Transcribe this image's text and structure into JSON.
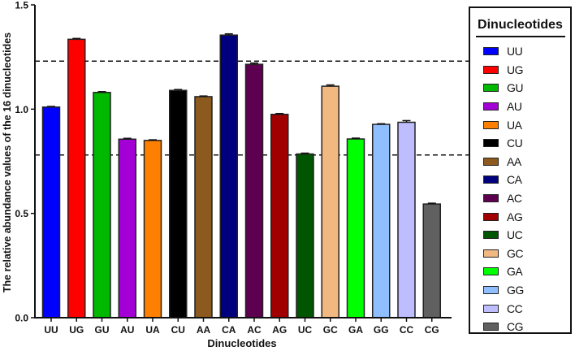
{
  "chart_data": {
    "type": "bar",
    "title": "",
    "xlabel": "Dinucleotides",
    "ylabel": "The relative abundance values of the 16 dinucleotides",
    "ylim": [
      0,
      1.5
    ],
    "yticks": [
      "0.0",
      "0.5",
      "1.0",
      "1.5"
    ],
    "grid": false,
    "legend_position": "right",
    "legend_title": "Dinucleotides",
    "categories": [
      "UU",
      "UG",
      "GU",
      "AU",
      "UA",
      "CU",
      "AA",
      "CA",
      "AC",
      "AG",
      "UC",
      "GC",
      "GA",
      "GG",
      "CC",
      "CG"
    ],
    "values": [
      1.01,
      1.335,
      1.08,
      0.856,
      0.85,
      1.09,
      1.06,
      1.355,
      1.215,
      0.975,
      0.785,
      1.11,
      0.857,
      0.927,
      0.937,
      0.545
    ],
    "errors": [
      0.003,
      0.004,
      0.004,
      0.004,
      0.003,
      0.004,
      0.003,
      0.006,
      0.006,
      0.004,
      0.004,
      0.006,
      0.004,
      0.003,
      0.008,
      0.004
    ],
    "colors": [
      "#0000ff",
      "#ff0000",
      "#00b800",
      "#a300d6",
      "#ff7f00",
      "#000000",
      "#8c5a1e",
      "#00007f",
      "#5c004f",
      "#a00000",
      "#005500",
      "#f2b882",
      "#00ff00",
      "#8fbfff",
      "#bdbdff",
      "#606060"
    ],
    "reference_lines": [
      {
        "y": 1.23,
        "style": "dashed",
        "label": ""
      },
      {
        "y": 0.78,
        "style": "dashed",
        "label": ""
      }
    ]
  },
  "legend": {
    "title": "Dinucleotides",
    "items": [
      {
        "label": "UU",
        "color": "#0000ff"
      },
      {
        "label": "UG",
        "color": "#ff0000"
      },
      {
        "label": "GU",
        "color": "#00b800"
      },
      {
        "label": "AU",
        "color": "#a300d6"
      },
      {
        "label": "UA",
        "color": "#ff7f00"
      },
      {
        "label": "CU",
        "color": "#000000"
      },
      {
        "label": "AA",
        "color": "#8c5a1e"
      },
      {
        "label": "CA",
        "color": "#00007f"
      },
      {
        "label": "AC",
        "color": "#5c004f"
      },
      {
        "label": "AG",
        "color": "#a00000"
      },
      {
        "label": "UC",
        "color": "#005500"
      },
      {
        "label": "GC",
        "color": "#f2b882"
      },
      {
        "label": "GA",
        "color": "#00ff00"
      },
      {
        "label": "GG",
        "color": "#8fbfff"
      },
      {
        "label": "CC",
        "color": "#bdbdff"
      },
      {
        "label": "CG",
        "color": "#606060"
      }
    ]
  }
}
